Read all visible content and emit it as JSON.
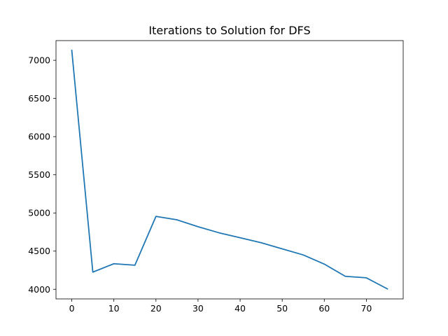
{
  "chart_data": {
    "type": "line",
    "title": "Iterations to Solution for DFS",
    "xlabel": "",
    "ylabel": "",
    "xlim": [
      -3.75,
      78.75
    ],
    "ylim": [
      3874,
      7258
    ],
    "x_ticks": [
      0,
      10,
      20,
      30,
      40,
      50,
      60,
      70
    ],
    "y_ticks": [
      4000,
      4500,
      5000,
      5500,
      6000,
      6500,
      7000
    ],
    "grid": false,
    "line_color": "#1f77b4",
    "series": [
      {
        "x": [
          0,
          5,
          10,
          15,
          20,
          25,
          30,
          35,
          40,
          45,
          50,
          55,
          60,
          65,
          70,
          75
        ],
        "values": [
          7130,
          4225,
          4335,
          4315,
          4955,
          4910,
          4820,
          4740,
          4675,
          4610,
          4530,
          4450,
          4330,
          4170,
          4150,
          4005
        ]
      }
    ]
  }
}
